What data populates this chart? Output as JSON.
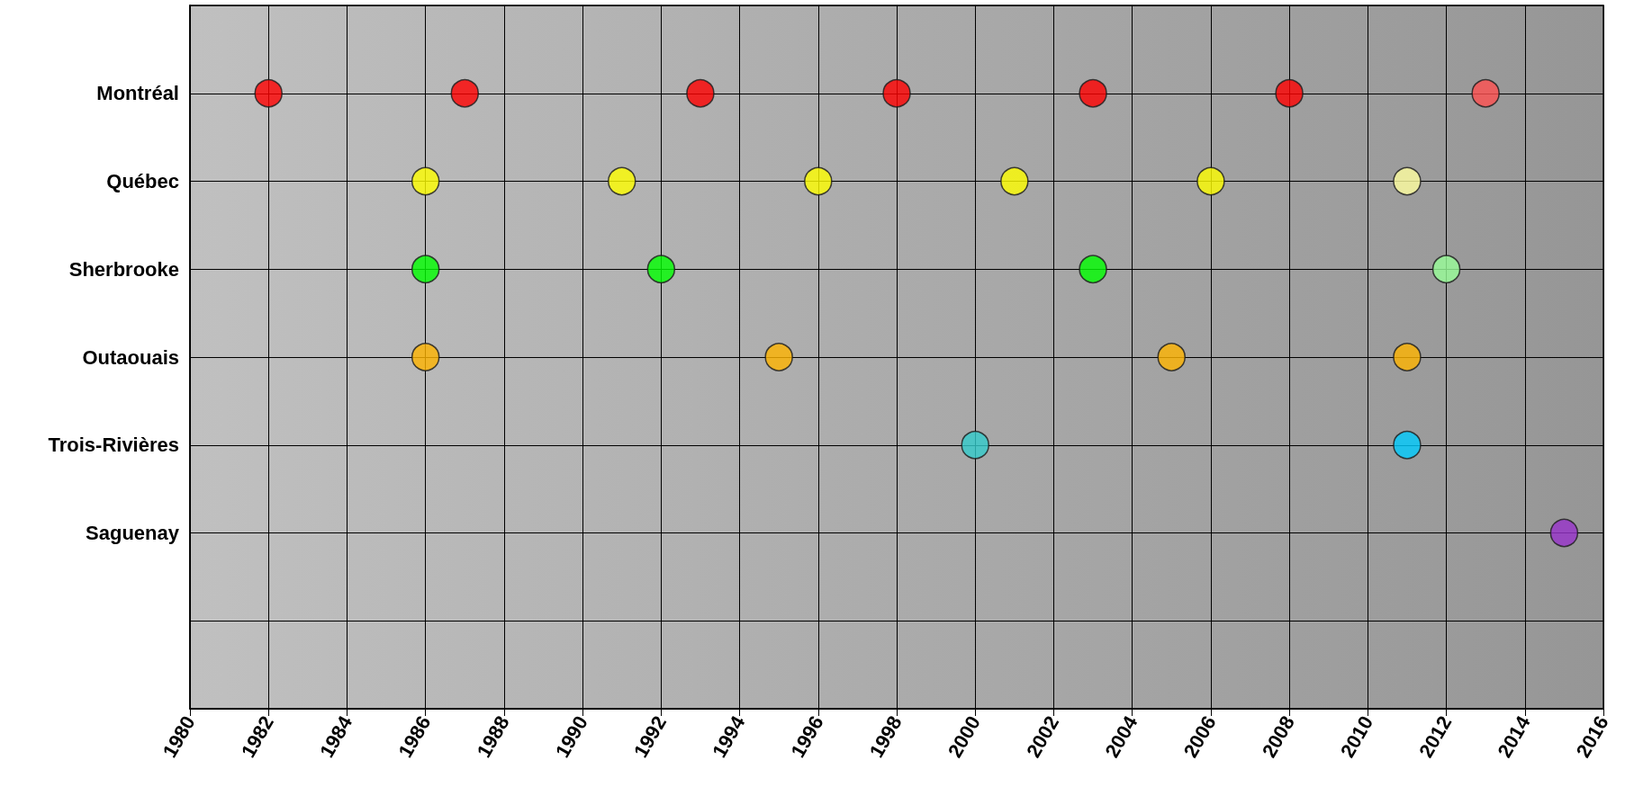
{
  "chart_data": {
    "type": "scatter",
    "orientation": "horizontal",
    "marker": "circle",
    "grid": true,
    "xlim": [
      1980,
      2016
    ],
    "xticks": [
      1980,
      1982,
      1984,
      1986,
      1988,
      1990,
      1992,
      1994,
      1996,
      1998,
      2000,
      2002,
      2004,
      2006,
      2008,
      2010,
      2012,
      2014,
      2016
    ],
    "categories": [
      null,
      "Montréal",
      "Québec",
      "Sherbrooke",
      "Outaouais",
      "Trois-Rivières",
      "Saguenay",
      null,
      null
    ],
    "series": [
      {
        "values": [
          null,
          1982,
          1986,
          1986,
          1986,
          2000,
          2015,
          null,
          null
        ],
        "colors": [
          null,
          "#ff0000",
          "#ffff00",
          "#00ff00",
          "#ffb400",
          "#33cccc",
          "#9933cc",
          null,
          null
        ]
      },
      {
        "values": [
          null,
          1987,
          1991,
          1992,
          1995,
          2011,
          null,
          null,
          null
        ],
        "colors": [
          null,
          "#ff0000",
          "#ffff00",
          "#00ff00",
          "#ffb400",
          "#00ccff",
          null,
          null,
          null
        ]
      },
      {
        "values": [
          null,
          1993,
          1996,
          2003,
          2005,
          null,
          null,
          null,
          null
        ],
        "colors": [
          null,
          "#ff0000",
          "#ffff00",
          "#00ff00",
          "#ffb400",
          null,
          null,
          null,
          null
        ]
      },
      {
        "values": [
          null,
          1998,
          2001,
          2012,
          2011,
          null,
          null,
          null,
          null
        ],
        "colors": [
          null,
          "#ff0000",
          "#ffff00",
          "#99ff99",
          "#ffb400",
          null,
          null,
          null,
          null
        ]
      },
      {
        "values": [
          null,
          2003,
          2006,
          null,
          null,
          null,
          null,
          null,
          null
        ],
        "colors": [
          null,
          "#ff0000",
          "#ffff00",
          null,
          null,
          null,
          null,
          null,
          null
        ]
      },
      {
        "values": [
          null,
          2008,
          2011,
          null,
          null,
          null,
          null,
          null,
          null
        ],
        "colors": [
          null,
          "#ff0000",
          "#ffffa0",
          null,
          null,
          null,
          null,
          null,
          null
        ]
      },
      {
        "values": [
          null,
          2013,
          null,
          null,
          null,
          null,
          null,
          null,
          null
        ],
        "colors": [
          null,
          "#ff5050",
          null,
          null,
          null,
          null,
          null,
          null,
          null
        ]
      }
    ]
  }
}
